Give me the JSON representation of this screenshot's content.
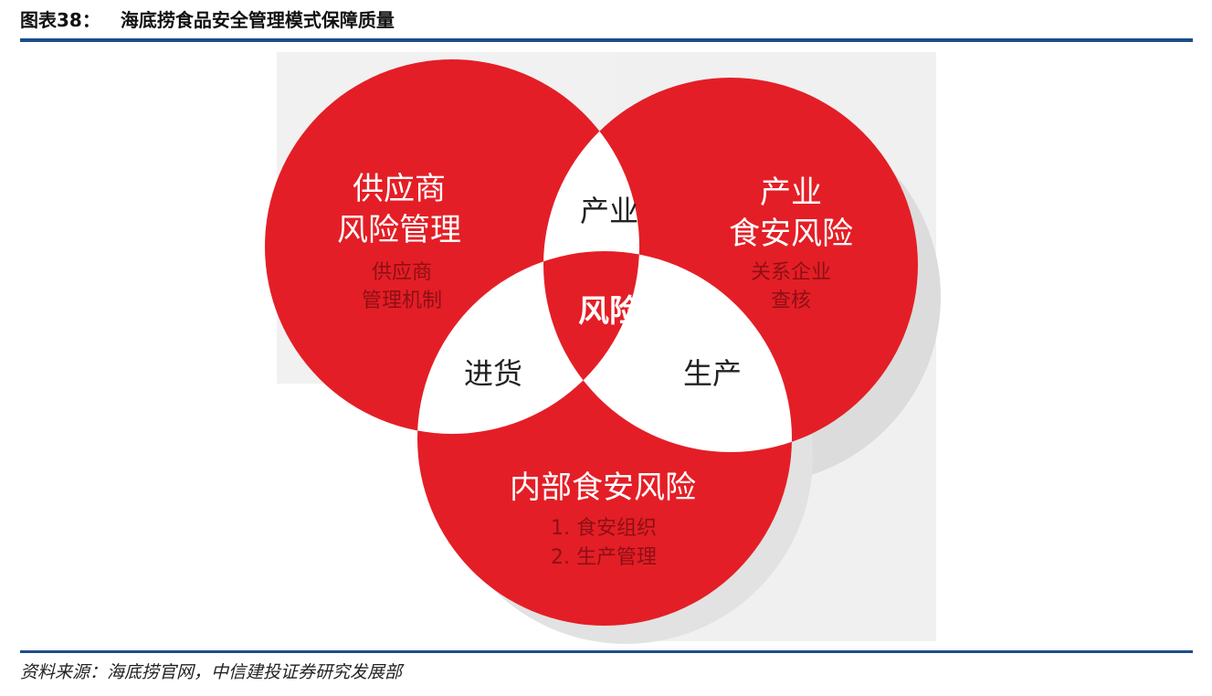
{
  "header": {
    "figure_number": "图表38：",
    "title": "海底捞食品安全管理模式保障质量"
  },
  "diagram": {
    "colors": {
      "circle": "#e41e26",
      "overlap": "#ffffff",
      "center": "#e41e26",
      "main_text": "#ffffff",
      "sub_text": "#8c1015",
      "overlap_text": "#222222"
    },
    "circles": {
      "supplier": {
        "title_line1": "供应商",
        "title_line2": "风险管理",
        "sub_line1": "供应商",
        "sub_line2": "管理机制"
      },
      "industry": {
        "title_line1": "产业",
        "title_line2": "食安风险",
        "sub_line1": "关系企业",
        "sub_line2": "查核"
      },
      "internal": {
        "title": "内部食安风险",
        "sub_line1": "1. 食安组织",
        "sub_line2": "2. 生产管理"
      }
    },
    "overlaps": {
      "supplier_industry": "产业",
      "supplier_internal": "进货",
      "industry_internal": "生产",
      "center": "风险"
    }
  },
  "footer": {
    "source": "资料来源：海底捞官网，中信建投证券研究发展部"
  }
}
